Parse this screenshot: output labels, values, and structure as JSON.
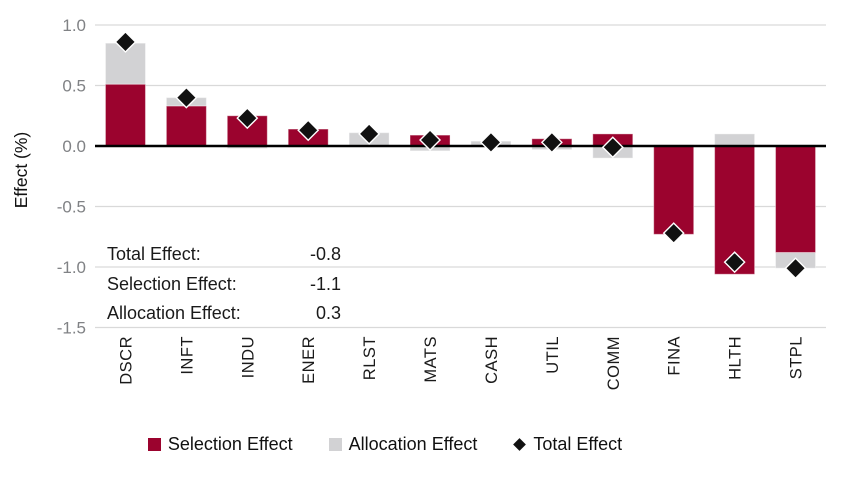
{
  "chart_data": {
    "type": "bar",
    "stacked": true,
    "title": "",
    "xlabel": "",
    "ylabel": "Effect (%)",
    "ylim": [
      -1.5,
      1.0
    ],
    "ytick_step": 0.5,
    "grid": true,
    "legend_position": "bottom",
    "categories": [
      "DSCR",
      "INFT",
      "INDU",
      "ENER",
      "RLST",
      "MATS",
      "CASH",
      "UTIL",
      "COMM",
      "FINA",
      "HLTH",
      "STPL"
    ],
    "series": [
      {
        "name": "Selection Effect",
        "color": "#9B032E",
        "values": [
          0.51,
          0.33,
          0.25,
          0.14,
          0.0,
          0.09,
          0.0,
          0.06,
          0.1,
          -0.73,
          -1.06,
          -0.88
        ]
      },
      {
        "name": "Allocation Effect",
        "color": "#D2D2D4",
        "values": [
          0.34,
          0.07,
          -0.02,
          -0.01,
          0.11,
          -0.04,
          0.04,
          -0.03,
          -0.1,
          0.01,
          0.1,
          -0.13
        ]
      }
    ],
    "totals": {
      "name": "Total Effect",
      "marker": "diamond",
      "color": "#111111",
      "values": [
        0.86,
        0.4,
        0.23,
        0.13,
        0.1,
        0.05,
        0.03,
        0.03,
        -0.01,
        -0.72,
        -0.96,
        -1.01
      ]
    }
  },
  "annotation": {
    "rows": [
      {
        "label": "Total Effect:",
        "value": "-0.8"
      },
      {
        "label": "Selection Effect:",
        "value": "-1.1"
      },
      {
        "label": "Allocation Effect:",
        "value": "0.3"
      }
    ]
  },
  "legend": {
    "items": [
      {
        "label": "Selection Effect",
        "swatch": "square",
        "color": "#9B032E"
      },
      {
        "label": "Allocation Effect",
        "swatch": "square",
        "color": "#D2D2D4"
      },
      {
        "label": "Total Effect",
        "swatch": "diamond",
        "color": "#111111"
      }
    ]
  },
  "colors": {
    "gridline": "#D9D9D9",
    "zero_line": "#000000",
    "y_tick_text": "#808285",
    "x_label_text": "#1a1a1a"
  }
}
